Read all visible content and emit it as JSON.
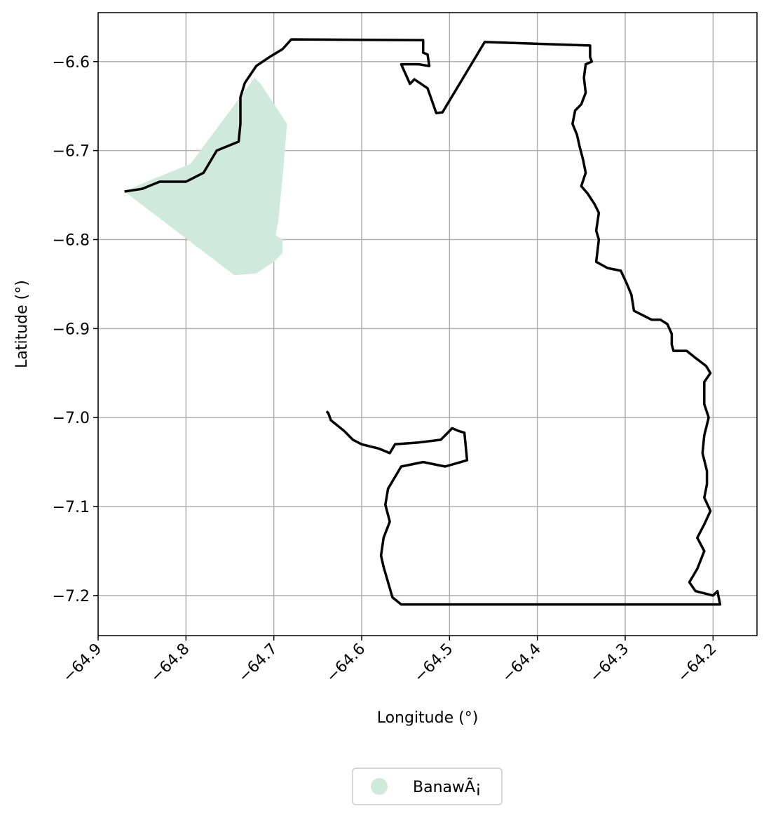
{
  "chart_data": {
    "type": "map",
    "title": "",
    "xlabel": "Longitude (°)",
    "ylabel": "Latitude (°)",
    "xlim": [
      -64.9,
      -64.15
    ],
    "ylim": [
      -7.245,
      -6.545
    ],
    "grid": true,
    "x_ticks": [
      -64.9,
      -64.8,
      -64.7,
      -64.6,
      -64.5,
      -64.4,
      -64.3,
      -64.2
    ],
    "x_tick_labels": [
      "−64.9",
      "−64.8",
      "−64.7",
      "−64.6",
      "−64.5",
      "−64.4",
      "−64.3",
      "−64.2"
    ],
    "y_ticks": [
      -6.6,
      -6.7,
      -6.8,
      -6.9,
      -7.0,
      -7.1,
      -7.2
    ],
    "y_tick_labels": [
      "−6.6",
      "−6.7",
      "−6.8",
      "−6.9",
      "−7.0",
      "−7.1",
      "−7.2"
    ],
    "legend": {
      "placement": "bottom-center",
      "entries": [
        {
          "label": "BanawÃ¡",
          "color": "#cfeadd"
        }
      ]
    },
    "colors": {
      "region_fill": "#cfeadd",
      "boundary": "#000000",
      "grid": "#b0b0b0"
    },
    "shaded_region": {
      "name": "BanawÃ¡",
      "coords": [
        [
          -64.87,
          -6.746
        ],
        [
          -64.745,
          -6.84
        ],
        [
          -64.72,
          -6.838
        ],
        [
          -64.7,
          -6.825
        ],
        [
          -64.69,
          -6.815
        ],
        [
          -64.69,
          -6.8
        ],
        [
          -64.698,
          -6.795
        ],
        [
          -64.695,
          -6.78
        ],
        [
          -64.69,
          -6.73
        ],
        [
          -64.685,
          -6.67
        ],
        [
          -64.705,
          -6.64
        ],
        [
          -64.715,
          -6.625
        ],
        [
          -64.722,
          -6.618
        ],
        [
          -64.728,
          -6.626
        ],
        [
          -64.74,
          -6.642
        ],
        [
          -64.795,
          -6.715
        ],
        [
          -64.85,
          -6.737
        ]
      ]
    },
    "boundary": {
      "coords": [
        [
          -64.87,
          -6.746
        ],
        [
          -64.85,
          -6.743
        ],
        [
          -64.83,
          -6.735
        ],
        [
          -64.8,
          -6.735
        ],
        [
          -64.78,
          -6.725
        ],
        [
          -64.765,
          -6.7
        ],
        [
          -64.74,
          -6.69
        ],
        [
          -64.738,
          -6.67
        ],
        [
          -64.738,
          -6.64
        ],
        [
          -64.733,
          -6.624
        ],
        [
          -64.72,
          -6.605
        ],
        [
          -64.705,
          -6.595
        ],
        [
          -64.69,
          -6.586
        ],
        [
          -64.68,
          -6.575
        ],
        [
          -64.53,
          -6.576
        ],
        [
          -64.53,
          -6.59
        ],
        [
          -64.525,
          -6.592
        ],
        [
          -64.523,
          -6.605
        ],
        [
          -64.535,
          -6.603
        ],
        [
          -64.555,
          -6.603
        ],
        [
          -64.545,
          -6.625
        ],
        [
          -64.54,
          -6.62
        ],
        [
          -64.525,
          -6.63
        ],
        [
          -64.515,
          -6.658
        ],
        [
          -64.508,
          -6.657
        ],
        [
          -64.46,
          -6.578
        ],
        [
          -64.34,
          -6.582
        ],
        [
          -64.34,
          -6.595
        ],
        [
          -64.338,
          -6.6
        ],
        [
          -64.345,
          -6.603
        ],
        [
          -64.347,
          -6.618
        ],
        [
          -64.345,
          -6.635
        ],
        [
          -64.35,
          -6.648
        ],
        [
          -64.357,
          -6.655
        ],
        [
          -64.36,
          -6.67
        ],
        [
          -64.355,
          -6.682
        ],
        [
          -64.352,
          -6.695
        ],
        [
          -64.348,
          -6.71
        ],
        [
          -64.345,
          -6.725
        ],
        [
          -64.35,
          -6.74
        ],
        [
          -64.343,
          -6.748
        ],
        [
          -64.335,
          -6.76
        ],
        [
          -64.33,
          -6.77
        ],
        [
          -64.333,
          -6.79
        ],
        [
          -64.33,
          -6.8
        ],
        [
          -64.333,
          -6.825
        ],
        [
          -64.32,
          -6.832
        ],
        [
          -64.305,
          -6.835
        ],
        [
          -64.298,
          -6.85
        ],
        [
          -64.293,
          -6.862
        ],
        [
          -64.29,
          -6.88
        ],
        [
          -64.27,
          -6.89
        ],
        [
          -64.26,
          -6.89
        ],
        [
          -64.252,
          -6.895
        ],
        [
          -64.247,
          -6.906
        ],
        [
          -64.247,
          -6.918
        ],
        [
          -64.245,
          -6.925
        ],
        [
          -64.23,
          -6.925
        ],
        [
          -64.22,
          -6.933
        ],
        [
          -64.208,
          -6.942
        ],
        [
          -64.203,
          -6.95
        ],
        [
          -64.21,
          -6.96
        ],
        [
          -64.21,
          -6.985
        ],
        [
          -64.205,
          -7.0
        ],
        [
          -64.21,
          -7.02
        ],
        [
          -64.212,
          -7.04
        ],
        [
          -64.207,
          -7.06
        ],
        [
          -64.207,
          -7.075
        ],
        [
          -64.21,
          -7.09
        ],
        [
          -64.203,
          -7.105
        ],
        [
          -64.21,
          -7.12
        ],
        [
          -64.218,
          -7.135
        ],
        [
          -64.21,
          -7.15
        ],
        [
          -64.218,
          -7.17
        ],
        [
          -64.227,
          -7.185
        ],
        [
          -64.22,
          -7.195
        ],
        [
          -64.2,
          -7.2
        ],
        [
          -64.195,
          -7.195
        ],
        [
          -64.192,
          -7.21
        ],
        [
          -64.555,
          -7.21
        ],
        [
          -64.565,
          -7.202
        ],
        [
          -64.57,
          -7.185
        ],
        [
          -64.575,
          -7.168
        ],
        [
          -64.578,
          -7.155
        ],
        [
          -64.575,
          -7.135
        ],
        [
          -64.568,
          -7.117
        ],
        [
          -64.573,
          -7.098
        ],
        [
          -64.57,
          -7.08
        ],
        [
          -64.555,
          -7.055
        ],
        [
          -64.53,
          -7.05
        ],
        [
          -64.505,
          -7.055
        ],
        [
          -64.48,
          -7.048
        ],
        [
          -64.483,
          -7.017
        ],
        [
          -64.49,
          -7.015
        ],
        [
          -64.497,
          -7.012
        ],
        [
          -64.505,
          -7.02
        ],
        [
          -64.51,
          -7.025
        ],
        [
          -64.535,
          -7.028
        ],
        [
          -64.562,
          -7.03
        ],
        [
          -64.568,
          -7.04
        ],
        [
          -64.58,
          -7.035
        ],
        [
          -64.6,
          -7.03
        ],
        [
          -64.61,
          -7.025
        ],
        [
          -64.62,
          -7.015
        ],
        [
          -64.635,
          -7.003
        ],
        [
          -64.638,
          -6.995
        ],
        [
          -64.64,
          -6.993
        ]
      ]
    }
  }
}
